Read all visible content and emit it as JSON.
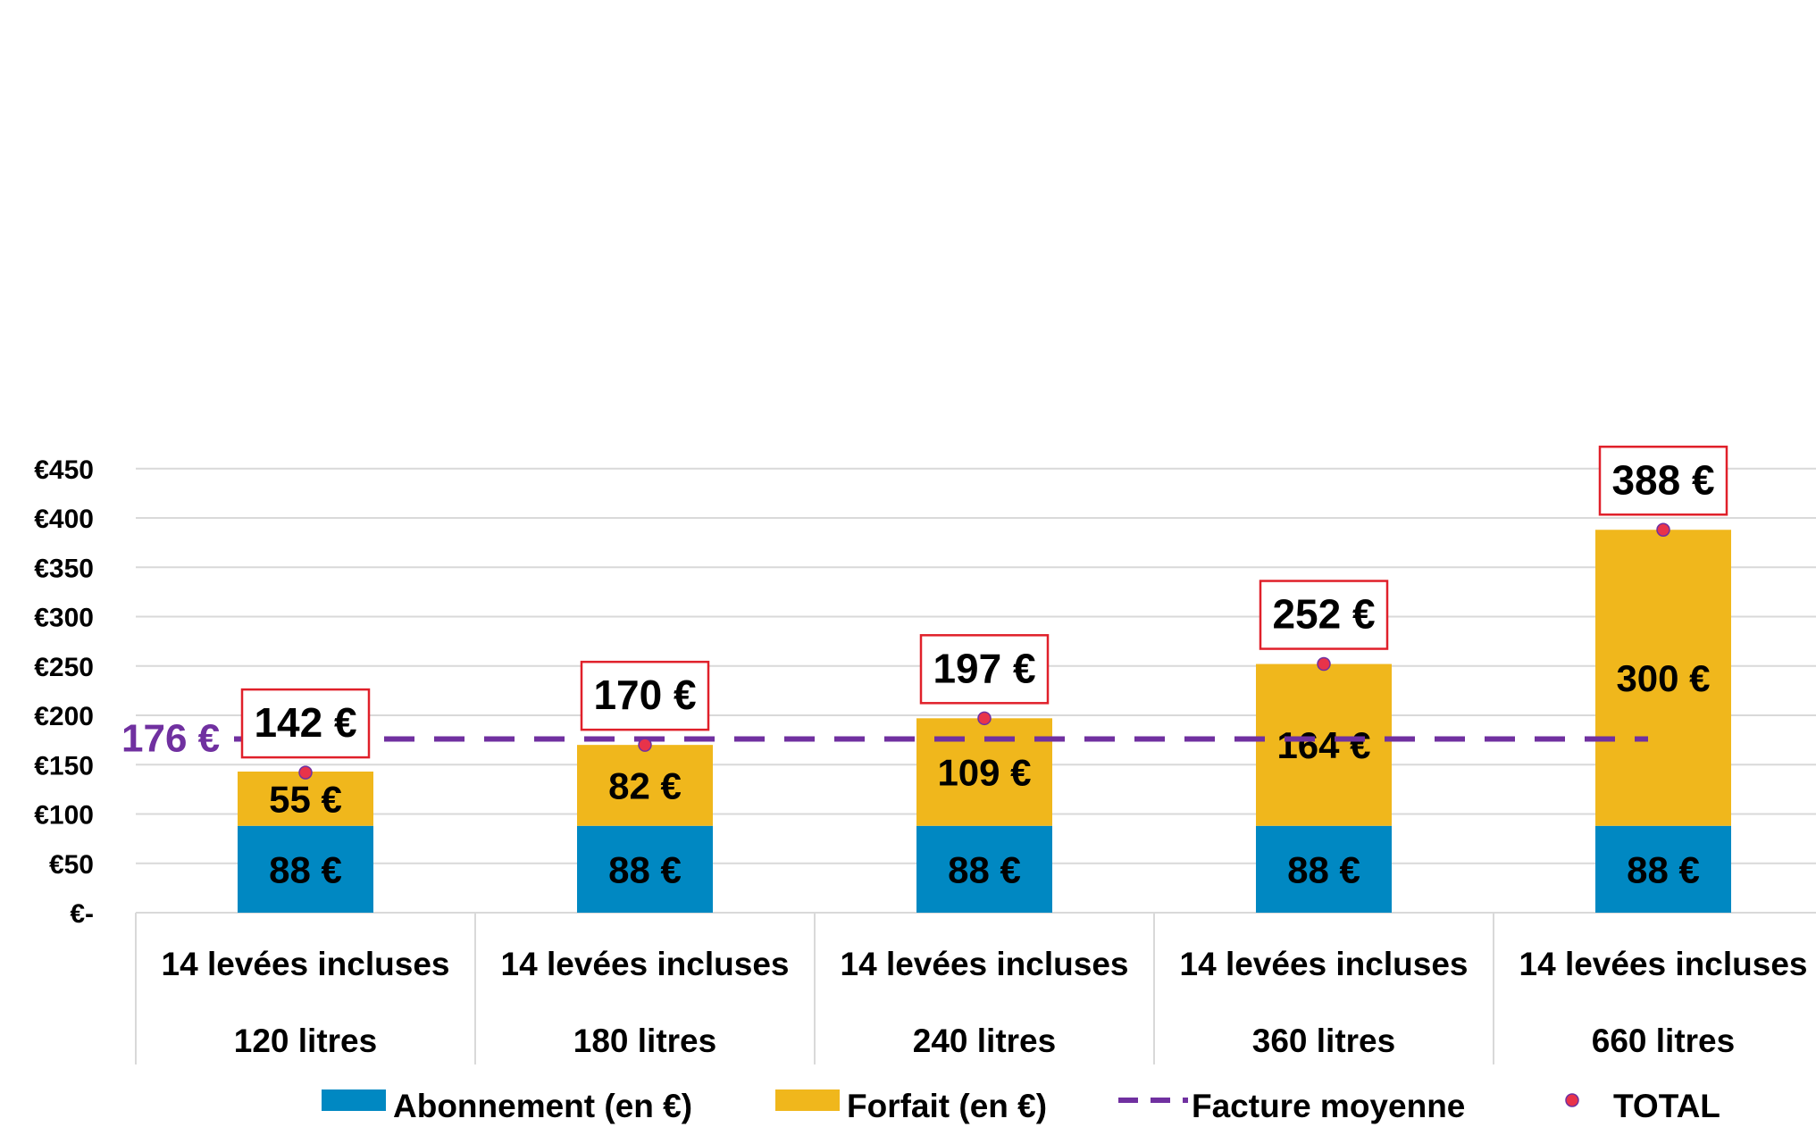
{
  "chart_data": {
    "type": "bar",
    "stacked": true,
    "title": "",
    "xlabel": "",
    "ylabel": "",
    "ylim": [
      0,
      450
    ],
    "y_ticks": [
      0,
      50,
      100,
      150,
      200,
      250,
      300,
      350,
      400,
      450
    ],
    "y_tick_labels": [
      "€-",
      "€50",
      "€100",
      "€150",
      "€200",
      "€250",
      "€300",
      "€350",
      "€400",
      "€450"
    ],
    "grid": true,
    "legend_position": "bottom",
    "categories": [
      {
        "line1": "14 levées incluses",
        "line2": "120 litres"
      },
      {
        "line1": "14 levées incluses",
        "line2": "180 litres"
      },
      {
        "line1": "14 levées incluses",
        "line2": "240 litres"
      },
      {
        "line1": "14 levées incluses",
        "line2": "360 litres"
      },
      {
        "line1": "14 levées incluses",
        "line2": "660 litres"
      }
    ],
    "series": [
      {
        "name": "Abonnement (en €)",
        "kind": "bar",
        "color": "#0088c2",
        "values": [
          88,
          88,
          88,
          88,
          88
        ],
        "labels": [
          "88 €",
          "88 €",
          "88 €",
          "88 €",
          "88 €"
        ]
      },
      {
        "name": "Forfait (en €)",
        "kind": "bar",
        "color": "#f0b71c",
        "values": [
          55,
          82,
          109,
          164,
          300
        ],
        "labels": [
          "55 €",
          "82 €",
          "109 €",
          "164 €",
          "300 €"
        ]
      },
      {
        "name": "Facture moyenne",
        "kind": "line",
        "style": "dashed",
        "color": "#7030a0",
        "value": 176,
        "label": "176 €"
      },
      {
        "name": "TOTAL",
        "kind": "scatter",
        "color": "#e8334a",
        "values": [
          142,
          170,
          197,
          252,
          388
        ],
        "labels": [
          "142 €",
          "170 €",
          "197 €",
          "252 €",
          "388 €"
        ],
        "label_box_color": "#e0202a"
      }
    ]
  }
}
